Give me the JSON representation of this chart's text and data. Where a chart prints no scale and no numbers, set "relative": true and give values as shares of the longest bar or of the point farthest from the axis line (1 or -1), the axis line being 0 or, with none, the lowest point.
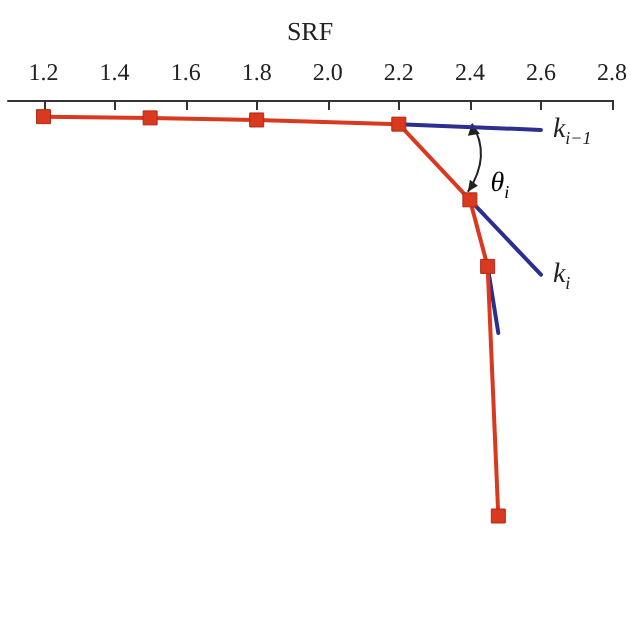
{
  "chart_data": {
    "type": "line",
    "xlabel": "SRF",
    "relative": true,
    "xlim": [
      1.1,
      2.8
    ],
    "xticks": [
      1.2,
      1.4,
      1.6,
      1.8,
      {
        "value": 2,
        "label": "2.0"
      },
      2.2,
      2.4,
      2.6,
      2.8
    ],
    "marker": "square",
    "line_style": "solid",
    "grid": false,
    "legend": false,
    "series": [
      {
        "color": "#d9391f",
        "x": [
          1.2,
          1.5,
          1.8,
          2.2,
          2.4,
          2.45,
          2.48
        ],
        "values": [
          -0.04,
          -0.043,
          -0.048,
          -0.058,
          -0.24,
          -0.4,
          -1
        ]
      },
      {
        "name": "k$_{i−1}$",
        "color": "#2b2f8f",
        "marker": "none",
        "x": [
          2.2,
          2.6
        ],
        "values": [
          -0.058,
          -0.072
        ]
      },
      {
        "name": "k$_{i}$",
        "color": "#2b2f8f",
        "marker": "none",
        "x": [
          2.4,
          2.6
        ],
        "values": [
          -0.24,
          -0.42
        ]
      },
      {
        "color": "#2b2f8f",
        "marker": "none",
        "x": [
          2.45,
          2.48
        ],
        "values": [
          -0.4,
          -0.56
        ]
      }
    ],
    "annotations": [
      "θ$_{i}$"
    ]
  }
}
